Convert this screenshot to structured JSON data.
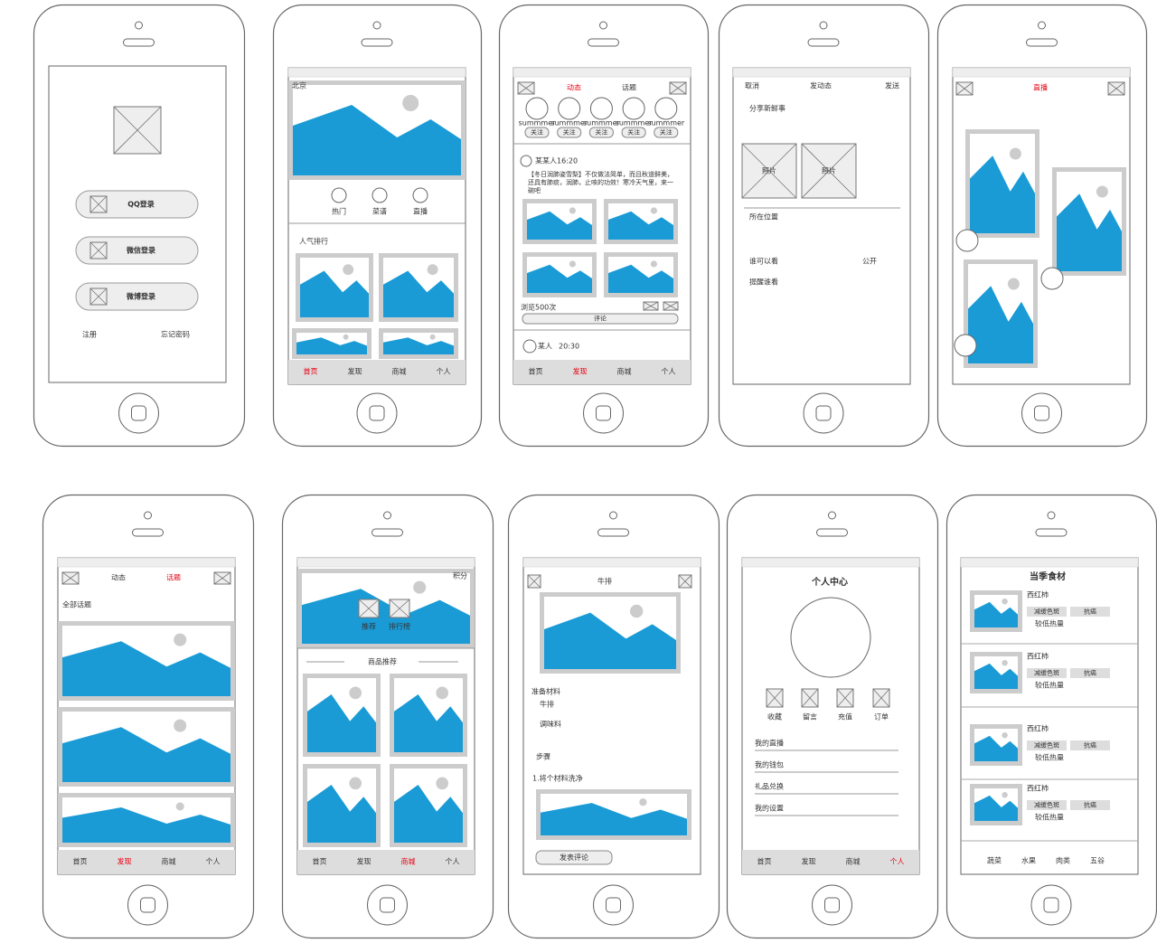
{
  "screens": [
    {
      "login_buttons": [
        "QQ登录",
        "微信登录",
        "微博登录"
      ],
      "links": [
        "注册",
        "忘记密码"
      ]
    },
    {
      "location": "北京",
      "categories": [
        "热门",
        "菜谱",
        "直播"
      ],
      "section": "人气排行",
      "tab_bar": {
        "items": [
          "首页",
          "发现",
          "商城",
          "个人"
        ],
        "active": 0
      }
    },
    {
      "top_tabs": {
        "items": [
          "动态",
          "话题"
        ],
        "active": 0
      },
      "users": [
        {
          "name": "summmer",
          "button": "关注"
        },
        {
          "name": "summmer",
          "button": "关注"
        },
        {
          "name": "summmer",
          "button": "关注"
        },
        {
          "name": "summmer",
          "button": "关注"
        },
        {
          "name": "summmer",
          "button": "关注"
        }
      ],
      "post": {
        "author": "某某人16:20",
        "text": "【冬日润肺姿雪梨】不仅做法简单，而且秋道鲜美，还具有肺痰，润肺，止咳的功效！寒冷天气里，来一碗吧",
        "views": "浏览500次",
        "comment": "评论"
      },
      "next_post": {
        "author": "某人",
        "time": "20:30"
      },
      "tab_bar": {
        "items": [
          "首页",
          "发现",
          "商城",
          "个人"
        ],
        "active": 1
      }
    },
    {
      "header": [
        "取消",
        "发动态",
        "发送"
      ],
      "prompt": "分享新鲜事",
      "photos": [
        "照片",
        "照片"
      ],
      "location": "所在位置",
      "visibility": {
        "label": "谁可以看",
        "value": "公开"
      },
      "remind": "提醒谁看"
    },
    {
      "title": "直播"
    },
    {
      "top_tabs": {
        "items": [
          "动态",
          "话题"
        ],
        "active": 1
      },
      "heading": "全部话题",
      "tab_bar": {
        "items": [
          "首页",
          "发现",
          "商城",
          "个人"
        ],
        "active": 1
      }
    },
    {
      "points": "积分",
      "shortcuts": [
        "推荐",
        "排行榜"
      ],
      "section": "商品推荐",
      "tab_bar": {
        "items": [
          "首页",
          "发现",
          "商城",
          "个人"
        ],
        "active": 2
      }
    },
    {
      "title": "牛排",
      "ingredients_heading": "准备材料",
      "ingredients": [
        "牛排",
        "调味料"
      ],
      "steps_heading": "步骤",
      "steps": [
        "1.将个材料洗净"
      ],
      "button": "发表评论"
    },
    {
      "title": "个人中心",
      "shortcuts": [
        "收藏",
        "留言",
        "充值",
        "订单"
      ],
      "menu": [
        "我的直播",
        "我的钱包",
        "礼品兑换",
        "我的设置"
      ],
      "tab_bar": {
        "items": [
          "首页",
          "发现",
          "商城",
          "个人"
        ],
        "active": 3
      }
    },
    {
      "title": "当季食材",
      "items": [
        {
          "name": "西红柿",
          "tags": [
            "减缓色斑",
            "抗癌"
          ],
          "note": "较低热量"
        },
        {
          "name": "西红柿",
          "tags": [
            "减缓色斑",
            "抗癌"
          ],
          "note": "较低热量"
        },
        {
          "name": "西红柿",
          "tags": [
            "减缓色斑",
            "抗癌"
          ],
          "note": "较低热量"
        },
        {
          "name": "西红柿",
          "tags": [
            "减缓色斑",
            "抗癌"
          ],
          "note": "较低热量"
        }
      ],
      "categories": [
        "蔬菜",
        "水果",
        "肉类",
        "五谷"
      ]
    }
  ]
}
